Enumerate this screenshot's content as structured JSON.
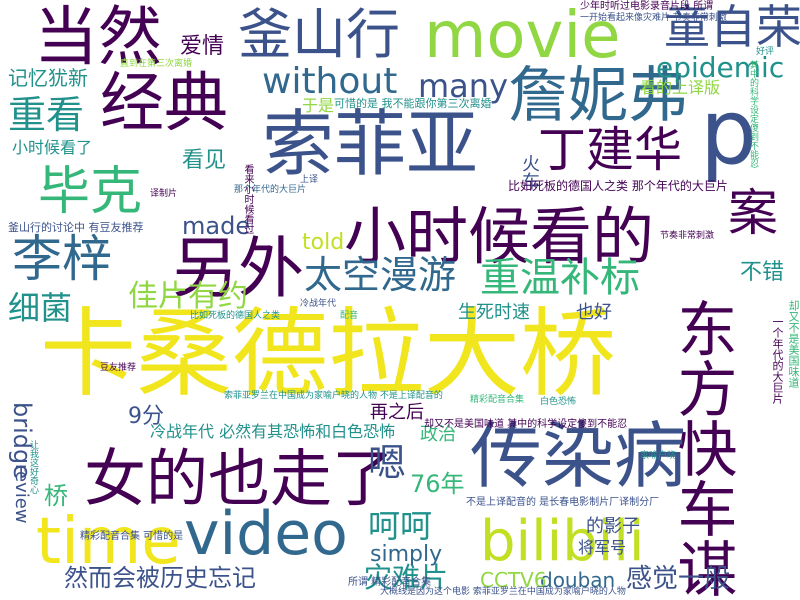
{
  "palette": {
    "purple": "#440154",
    "indigo": "#3b528b",
    "blue": "#31688e",
    "teal": "#21918c",
    "green": "#35b779",
    "lime": "#90d743",
    "yellow": "#f1e51d"
  },
  "words": [
    {
      "id": "w01",
      "text": "卡桑德拉大桥",
      "color": "#f1e51d"
    },
    {
      "id": "w02",
      "text": "索菲亚",
      "color": "#3b528b"
    },
    {
      "id": "w03",
      "text": "经典",
      "color": "#440154"
    },
    {
      "id": "w04",
      "text": "当然",
      "color": "#440154"
    },
    {
      "id": "w05",
      "text": "釜山行",
      "color": "#3b528b"
    },
    {
      "id": "w06",
      "text": "movie",
      "color": "#90d743"
    },
    {
      "id": "w07",
      "text": "童自荣",
      "color": "#3b528b"
    },
    {
      "id": "w08",
      "text": "詹妮弗",
      "color": "#31688e"
    },
    {
      "id": "w09",
      "text": "without",
      "color": "#31688e"
    },
    {
      "id": "w10",
      "text": "many",
      "color": "#3b528b"
    },
    {
      "id": "w11",
      "text": "epidemic",
      "color": "#21918c"
    },
    {
      "id": "w12",
      "text": "p",
      "color": "#3b528b"
    },
    {
      "id": "w13",
      "text": "丁建华",
      "color": "#440154"
    },
    {
      "id": "w14",
      "text": "重看",
      "color": "#21918c"
    },
    {
      "id": "w15",
      "text": "毕克",
      "color": "#35b779"
    },
    {
      "id": "w16",
      "text": "另外",
      "color": "#440154"
    },
    {
      "id": "w17",
      "text": "小时候看的",
      "color": "#440154"
    },
    {
      "id": "w18",
      "text": "李梓",
      "color": "#31688e"
    },
    {
      "id": "w19",
      "text": "太空漫游",
      "color": "#31688e"
    },
    {
      "id": "w20",
      "text": "重温补标",
      "color": "#35b779"
    },
    {
      "id": "w21",
      "text": "佳片有约",
      "color": "#90d743"
    },
    {
      "id": "w22",
      "text": "细菌",
      "color": "#21918c"
    },
    {
      "id": "w23",
      "text": "东方快车谋",
      "color": "#440154"
    },
    {
      "id": "w24",
      "text": "案",
      "color": "#440154"
    },
    {
      "id": "w25",
      "text": "女的也走了",
      "color": "#440154"
    },
    {
      "id": "w26",
      "text": "传染病",
      "color": "#3b528b"
    },
    {
      "id": "w27",
      "text": "time",
      "color": "#f1e51d"
    },
    {
      "id": "w28",
      "text": "video",
      "color": "#31688e"
    },
    {
      "id": "w29",
      "text": "bilibili",
      "color": "#c2df23"
    },
    {
      "id": "w30",
      "text": "嗯",
      "color": "#3b528b"
    },
    {
      "id": "w31",
      "text": "呵呵",
      "color": "#21918c"
    },
    {
      "id": "w32",
      "text": "灾难片",
      "color": "#21918c"
    },
    {
      "id": "w33",
      "text": "然而会被历史忘记",
      "color": "#3b528b"
    },
    {
      "id": "w34",
      "text": "感觉一般",
      "color": "#3b528b"
    },
    {
      "id": "w35",
      "text": "douban",
      "color": "#31688e"
    },
    {
      "id": "w36",
      "text": "CCTV6",
      "color": "#90d743"
    },
    {
      "id": "w37",
      "text": "simply",
      "color": "#31688e"
    },
    {
      "id": "w38",
      "text": "76年",
      "color": "#35b779"
    },
    {
      "id": "w39",
      "text": "bridge",
      "color": "#3b528b"
    },
    {
      "id": "w40",
      "text": "review",
      "color": "#3b528b"
    },
    {
      "id": "w41",
      "text": "桥",
      "color": "#35b779"
    },
    {
      "id": "w42",
      "text": "9分",
      "color": "#3b528b"
    },
    {
      "id": "w43",
      "text": "made",
      "color": "#3b528b"
    },
    {
      "id": "w44",
      "text": "told",
      "color": "#c2df23"
    },
    {
      "id": "w45",
      "text": "看见",
      "color": "#21918c"
    },
    {
      "id": "w46",
      "text": "记忆犹新",
      "color": "#21918c"
    },
    {
      "id": "w47",
      "text": "爱情",
      "color": "#440154"
    },
    {
      "id": "w48",
      "text": "不错",
      "color": "#21918c"
    },
    {
      "id": "w49",
      "text": "生死时速",
      "color": "#21918c"
    },
    {
      "id": "w50",
      "text": "也好",
      "color": "#3b528b"
    },
    {
      "id": "w51",
      "text": "冷战年代 必然有其恐怖和白色恐怖",
      "color": "#21918c"
    },
    {
      "id": "w52",
      "text": "再之后",
      "color": "#440154"
    },
    {
      "id": "w53",
      "text": "政治",
      "color": "#35b779"
    },
    {
      "id": "w54",
      "text": "小时候看了",
      "color": "#21918c"
    },
    {
      "id": "w55",
      "text": "看的上译版",
      "color": "#90d743"
    },
    {
      "id": "w56",
      "text": "火车",
      "color": "#3b528b"
    },
    {
      "id": "w57",
      "text": "比如死板的德国人之类 那个年代的大巨片",
      "color": "#440154"
    },
    {
      "id": "w58",
      "text": "釜山行的讨论中 有豆友推荐",
      "color": "#3b528b"
    },
    {
      "id": "w59",
      "text": "的影子",
      "color": "#3b528b"
    },
    {
      "id": "w60",
      "text": "将军号",
      "color": "#3b528b"
    },
    {
      "id": "w61",
      "text": "于是",
      "color": "#90d743"
    },
    {
      "id": "w62",
      "text": "可惜的是 我不能跟你第三次离婚",
      "color": "#21918c"
    },
    {
      "id": "w63",
      "text": "却又不是美国味道 其中的科学设定傻到不能忍",
      "color": "#440154"
    },
    {
      "id": "w64",
      "text": "精彩配音合集 可惜的是",
      "color": "#3b528b"
    },
    {
      "id": "w65",
      "text": "所谓 精彩配音合集",
      "color": "#3b528b"
    },
    {
      "id": "w66",
      "text": "少年时听过电影录音片段 所谓",
      "color": "#440154"
    },
    {
      "id": "w67",
      "text": "一开始看起来像灾难片 节奏非常刺激",
      "color": "#3b528b"
    },
    {
      "id": "w68",
      "text": "索菲亚罗兰在中国成为家喻户晓的人物 不是上译配音的",
      "color": "#21918c"
    },
    {
      "id": "w69",
      "text": "不是上译配音的 是长春电影制片厂译制分厂",
      "color": "#3b528b"
    },
    {
      "id": "w70",
      "text": "大概线是因为这个电影 索菲亚罗兰在中国成为家喻户晓的人物",
      "color": "#3b528b"
    },
    {
      "id": "w71",
      "text": "却又不是美国味道",
      "color": "#35b779"
    },
    {
      "id": "w72",
      "text": "一个年代的大巨片",
      "color": "#440154"
    },
    {
      "id": "w73",
      "text": "比如死板的德国人之类",
      "color": "#21918c"
    },
    {
      "id": "w74",
      "text": "那个年代的大巨片",
      "color": "#31688e"
    },
    {
      "id": "w75",
      "text": "看来小时候看过",
      "color": "#440154"
    },
    {
      "id": "w76",
      "text": "其中的科学设定傻到不能忍",
      "color": "#35b779"
    },
    {
      "id": "w77",
      "text": "直到在第三次离婚",
      "color": "#90d743"
    },
    {
      "id": "w78",
      "text": "让我这好奇心",
      "color": "#21918c"
    },
    {
      "id": "w79",
      "text": "冷战年代",
      "color": "#3b528b"
    },
    {
      "id": "w80",
      "text": "白色恐怖",
      "color": "#21918c"
    },
    {
      "id": "w81",
      "text": "节奏非常刺激",
      "color": "#440154"
    },
    {
      "id": "w82",
      "text": "精彩配音合集",
      "color": "#35b779"
    },
    {
      "id": "w83",
      "text": "译制片",
      "color": "#440154"
    },
    {
      "id": "w84",
      "text": "好评",
      "color": "#21918c"
    },
    {
      "id": "w85",
      "text": "上译",
      "color": "#3b528b"
    },
    {
      "id": "w86",
      "text": "配音",
      "color": "#35b779"
    },
    {
      "id": "w87",
      "text": "豆友推荐",
      "color": "#440154"
    },
    {
      "id": "w88",
      "text": "家喻户晓",
      "color": "#21918c"
    }
  ]
}
